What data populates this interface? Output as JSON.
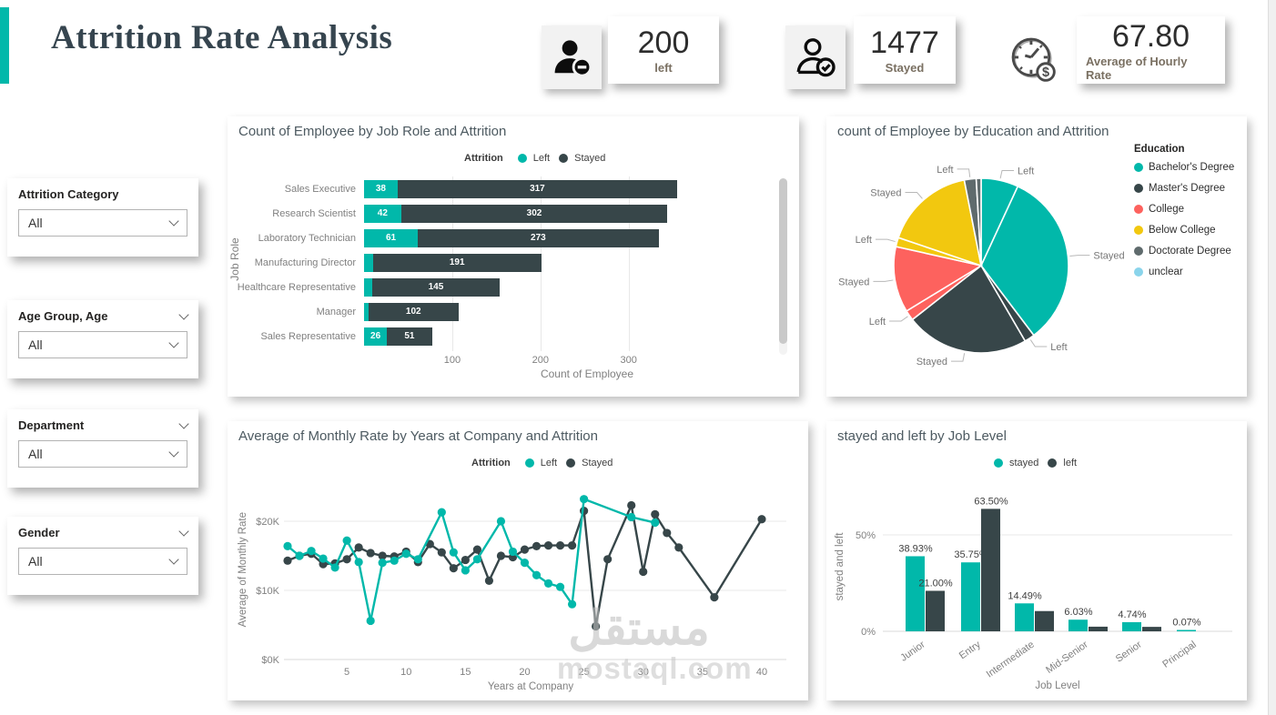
{
  "page": {
    "title": "Attrition Rate Analysis"
  },
  "kpis": [
    {
      "value": "200",
      "label": "left",
      "icon": "person-minus-icon"
    },
    {
      "value": "1477",
      "label": "Stayed",
      "icon": "person-check-icon"
    },
    {
      "value": "67.80",
      "label": "Average of Hourly Rate",
      "icon": "clock-dollar-icon"
    }
  ],
  "filters": [
    {
      "label": "Attrition Category",
      "value": "All",
      "header_chevron": false
    },
    {
      "label": "Age Group, Age",
      "value": "All",
      "header_chevron": true
    },
    {
      "label": "Department",
      "value": "All",
      "header_chevron": true
    },
    {
      "label": "Gender",
      "value": "All",
      "header_chevron": true
    }
  ],
  "colors": {
    "teal": "#01B8AA",
    "dark": "#374649",
    "red": "#FD625E",
    "yellow": "#F2C80F",
    "gray": "#5F6B6D",
    "lightblue": "#8AD4EB"
  },
  "watermark": {
    "arabic": "مستقل",
    "latin": "mostaql.com"
  },
  "chart_data": [
    {
      "type": "bar",
      "orientation": "horizontal-stacked",
      "title": "Count of Employee by Job Role and Attrition",
      "legend_title": "Attrition",
      "categories": [
        "Sales Executive",
        "Research Scientist",
        "Laboratory Technician",
        "Manufacturing Director",
        "Healthcare Representative",
        "Manager",
        "Sales Representative"
      ],
      "series": [
        {
          "name": "Left",
          "color": "#01B8AA",
          "values": [
            38,
            42,
            61,
            10,
            9,
            5,
            26
          ],
          "show_label": [
            true,
            true,
            true,
            false,
            false,
            false,
            true
          ]
        },
        {
          "name": "Stayed",
          "color": "#374649",
          "values": [
            317,
            302,
            273,
            191,
            145,
            102,
            51
          ],
          "show_label": [
            true,
            true,
            true,
            true,
            true,
            true,
            true
          ]
        }
      ],
      "xlabel": "Count of Employee",
      "ylabel": "Job Role",
      "x_ticks": [
        100,
        200,
        300
      ],
      "xlim": [
        0,
        485
      ],
      "grid": true
    },
    {
      "type": "pie",
      "title": "count of Employee by Education and Attrition",
      "legend_title": "Education",
      "legend": [
        {
          "label": "Bachelor's Degree",
          "color": "#01B8AA"
        },
        {
          "label": "Master's Degree",
          "color": "#374649"
        },
        {
          "label": "College",
          "color": "#FD625E"
        },
        {
          "label": "Below College",
          "color": "#F2C80F"
        },
        {
          "label": "Doctorate Degree",
          "color": "#5F6B6D"
        },
        {
          "label": "unclear",
          "color": "#8AD4EB"
        }
      ],
      "slices": [
        {
          "education": "Bachelor's Degree",
          "attrition": "Left",
          "color": "#01B8AA",
          "pct": 6.9,
          "label": "Left"
        },
        {
          "education": "Bachelor's Degree",
          "attrition": "Stayed",
          "color": "#01B8AA",
          "pct": 32.8,
          "label": "Stayed"
        },
        {
          "education": "Master's Degree",
          "attrition": "Left",
          "color": "#374649",
          "pct": 1.9,
          "label": "Left"
        },
        {
          "education": "Master's Degree",
          "attrition": "Stayed",
          "color": "#374649",
          "pct": 22.8,
          "label": "Stayed"
        },
        {
          "education": "College",
          "attrition": "Left",
          "color": "#FD625E",
          "pct": 1.9,
          "label": "Left"
        },
        {
          "education": "College",
          "attrition": "Stayed",
          "color": "#FD625E",
          "pct": 12.2,
          "label": "Stayed"
        },
        {
          "education": "Below College",
          "attrition": "Left",
          "color": "#F2C80F",
          "pct": 1.7,
          "label": "Left"
        },
        {
          "education": "Below College",
          "attrition": "Stayed",
          "color": "#F2C80F",
          "pct": 16.7,
          "label": "Stayed"
        },
        {
          "education": "Doctorate Degree",
          "attrition": "Left",
          "color": "#5F6B6D",
          "pct": 2.2,
          "label": "Left"
        },
        {
          "education": "Doctorate Degree",
          "attrition": "Stayed",
          "color": "#5F6B6D",
          "pct": 0.9,
          "label": null
        }
      ]
    },
    {
      "type": "line",
      "title": "Average of Monthly Rate by Years at Company and Attrition",
      "legend_title": "Attrition",
      "xlabel": "Years at Company",
      "ylabel": "Average of Monthly Rate",
      "x_ticks": [
        5,
        10,
        15,
        20,
        25,
        30,
        35,
        40
      ],
      "xlim": [
        0,
        41
      ],
      "y_ticks": [
        {
          "label": "$0K",
          "value": 0
        },
        {
          "label": "$10K",
          "value": 10
        },
        {
          "label": "$20K",
          "value": 20
        }
      ],
      "ylim": [
        0,
        26
      ],
      "unit": "$K",
      "series": [
        {
          "name": "Stayed",
          "color": "#374649",
          "x": [
            0,
            1,
            2,
            3,
            4,
            5,
            6,
            7,
            8,
            9,
            10,
            11,
            12,
            13,
            14,
            15,
            16,
            17,
            18,
            19,
            20,
            21,
            22,
            23,
            24,
            25,
            26,
            27,
            29,
            30,
            31,
            32,
            33,
            36,
            40
          ],
          "y": [
            14.3,
            15.0,
            15.3,
            13.8,
            13.9,
            14.5,
            16.2,
            15.4,
            15.0,
            14.9,
            15.6,
            14.1,
            16.7,
            15.5,
            13.2,
            14.4,
            15.9,
            11.4,
            15.0,
            14.8,
            15.9,
            16.4,
            16.5,
            16.5,
            16.5,
            21.5,
            4.8,
            14.5,
            22.3,
            12.7,
            21.0,
            18.3,
            16.2,
            9.0,
            20.3
          ]
        },
        {
          "name": "Left",
          "color": "#01B8AA",
          "x": [
            0,
            1,
            2,
            3,
            4,
            5,
            6,
            7,
            8,
            9,
            10,
            11,
            13,
            14,
            15,
            16,
            18,
            19,
            20,
            21,
            22,
            23,
            24,
            25,
            29,
            31
          ],
          "y": [
            16.4,
            15.0,
            15.7,
            14.6,
            13.3,
            17.2,
            14.1,
            5.6,
            14.0,
            14.3,
            15.3,
            14.5,
            21.3,
            15.5,
            12.9,
            14.5,
            20.0,
            15.6,
            14.0,
            12.2,
            11.0,
            10.5,
            8.0,
            23.2,
            20.6,
            19.8
          ]
        }
      ]
    },
    {
      "type": "bar",
      "orientation": "vertical-grouped",
      "title": "stayed and left by Job Level",
      "legend_title": null,
      "categories": [
        "Junior",
        "Entry",
        "Intermediate",
        "Mid-Senior",
        "Senior",
        "Principal"
      ],
      "series": [
        {
          "name": "stayed",
          "color": "#01B8AA",
          "values": [
            38.93,
            35.75,
            14.49,
            6.03,
            4.74,
            0.07
          ],
          "labels": [
            "38.93%",
            "35.75%",
            "14.49%",
            "6.03%",
            "4.74%",
            "0.07%"
          ]
        },
        {
          "name": "left",
          "color": "#374649",
          "values": [
            21.0,
            63.5,
            10.5,
            2.4,
            2.3,
            0
          ],
          "labels": [
            "21.00%",
            "63.50%",
            null,
            null,
            null,
            null
          ]
        }
      ],
      "xlabel": "Job Level",
      "ylabel": "stayed and left",
      "y_ticks": [
        {
          "label": "0%",
          "value": 0
        },
        {
          "label": "50%",
          "value": 50
        }
      ],
      "ylim": [
        0,
        70
      ]
    }
  ]
}
